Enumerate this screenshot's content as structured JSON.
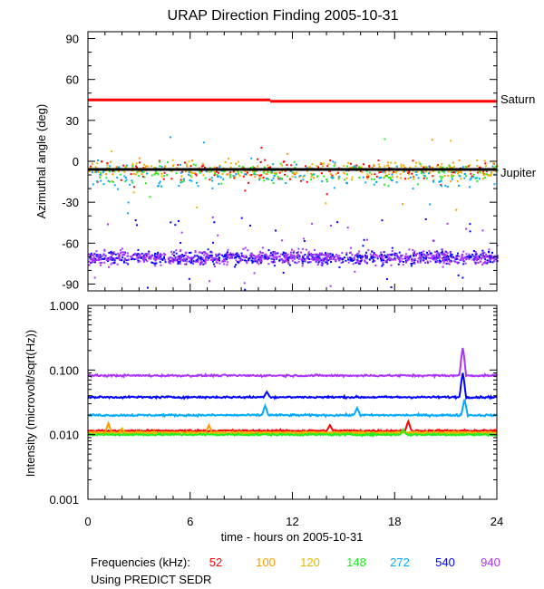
{
  "title": "URAP Direction Finding  2005-10-31",
  "footer": {
    "freq_label": "Frequencies (kHz):",
    "source_label": "Using PREDICT SEDR"
  },
  "colors": {
    "52": "#ff0000",
    "100": "#ff9900",
    "120": "#e6b800",
    "148": "#22ee22",
    "272": "#00aaff",
    "540": "#0000ff",
    "940": "#aa33ff",
    "reference": "#000000"
  },
  "chart_data": [
    {
      "type": "scatter",
      "title": "URAP Direction Finding  2005-10-31",
      "xlabel": "",
      "ylabel": "Azimuthal angle (deg)",
      "xlim": [
        0,
        24
      ],
      "ylim": [
        -95,
        95
      ],
      "x_ticks": [
        0,
        6,
        12,
        18,
        24
      ],
      "y_ticks": [
        90,
        60,
        30,
        0,
        -30,
        -60,
        -90
      ],
      "y_tick_labels": [
        "90",
        "60",
        "30",
        "0",
        "-30",
        "-60",
        "-90"
      ],
      "reference_lines": [
        {
          "name": "Saturn",
          "color": "#ff0000",
          "segments": [
            {
              "x": [
                0,
                10.7
              ],
              "y": 45
            },
            {
              "x": [
                10.7,
                24
              ],
              "y": 44
            }
          ]
        },
        {
          "name": "Jupiter",
          "color": "#000000",
          "segments": [
            {
              "x": [
                0,
                24
              ],
              "y": -6
            }
          ]
        }
      ],
      "series": [
        {
          "name": "52 kHz",
          "color": "#ff0000",
          "center": -6,
          "spread": 12
        },
        {
          "name": "100 kHz",
          "color": "#ff9900",
          "center": -6,
          "spread": 12
        },
        {
          "name": "120 kHz",
          "color": "#e6b800",
          "center": -6,
          "spread": 12
        },
        {
          "name": "148 kHz",
          "color": "#22ee22",
          "center": -8,
          "spread": 14
        },
        {
          "name": "272 kHz",
          "color": "#00aaff",
          "center": -10,
          "spread": 16
        },
        {
          "name": "540 kHz",
          "color": "#0000ff",
          "center": -70,
          "spread": 8
        },
        {
          "name": "940 kHz",
          "color": "#aa33ff",
          "center": -70,
          "spread": 9
        }
      ]
    },
    {
      "type": "line",
      "title": "",
      "xlabel": "time - hours on 2005-10-31",
      "ylabel": "Intensity (microvolt/sqrt(Hz))",
      "xlim": [
        0,
        24
      ],
      "ylim": [
        0.001,
        1.0
      ],
      "yscale": "log",
      "x_ticks": [
        0,
        6,
        12,
        18,
        24
      ],
      "y_ticks": [
        1.0,
        0.1,
        0.01,
        0.001
      ],
      "y_tick_labels": [
        "1.000",
        "0.100",
        "0.010",
        "0.001"
      ],
      "series": [
        {
          "name": "940 kHz",
          "color": "#aa33ff",
          "base": 0.082,
          "spikes": [
            {
              "x": 22.0,
              "value": 0.22
            }
          ]
        },
        {
          "name": "540 kHz",
          "color": "#0000ff",
          "base": 0.038,
          "spikes": [
            {
              "x": 22.0,
              "value": 0.09
            },
            {
              "x": 10.5,
              "value": 0.046
            }
          ]
        },
        {
          "name": "272 kHz",
          "color": "#00aaff",
          "base": 0.02,
          "spikes": [
            {
              "x": 22.1,
              "value": 0.035
            },
            {
              "x": 10.4,
              "value": 0.028
            },
            {
              "x": 15.8,
              "value": 0.026
            }
          ]
        },
        {
          "name": "52 kHz",
          "color": "#ff0000",
          "base": 0.0115,
          "spikes": [
            {
              "x": 18.8,
              "value": 0.016
            },
            {
              "x": 14.2,
              "value": 0.014
            }
          ]
        },
        {
          "name": "100 kHz",
          "color": "#ff9900",
          "base": 0.0108,
          "spikes": [
            {
              "x": 1.2,
              "value": 0.015
            },
            {
              "x": 7.1,
              "value": 0.014
            }
          ]
        },
        {
          "name": "120 kHz",
          "color": "#e6b800",
          "base": 0.0105,
          "spikes": [
            {
              "x": 2.0,
              "value": 0.0125
            }
          ]
        },
        {
          "name": "148 kHz",
          "color": "#22ee22",
          "base": 0.01,
          "spikes": [
            {
              "x": 18.5,
              "value": 0.012
            }
          ]
        }
      ]
    }
  ],
  "legend": [
    {
      "label": "52",
      "color": "#ff0000"
    },
    {
      "label": "100",
      "color": "#ff9900"
    },
    {
      "label": "120",
      "color": "#e6b800"
    },
    {
      "label": "148",
      "color": "#22ee22"
    },
    {
      "label": "272",
      "color": "#00aaff"
    },
    {
      "label": "540",
      "color": "#0000ff"
    },
    {
      "label": "940",
      "color": "#aa33ff"
    }
  ]
}
